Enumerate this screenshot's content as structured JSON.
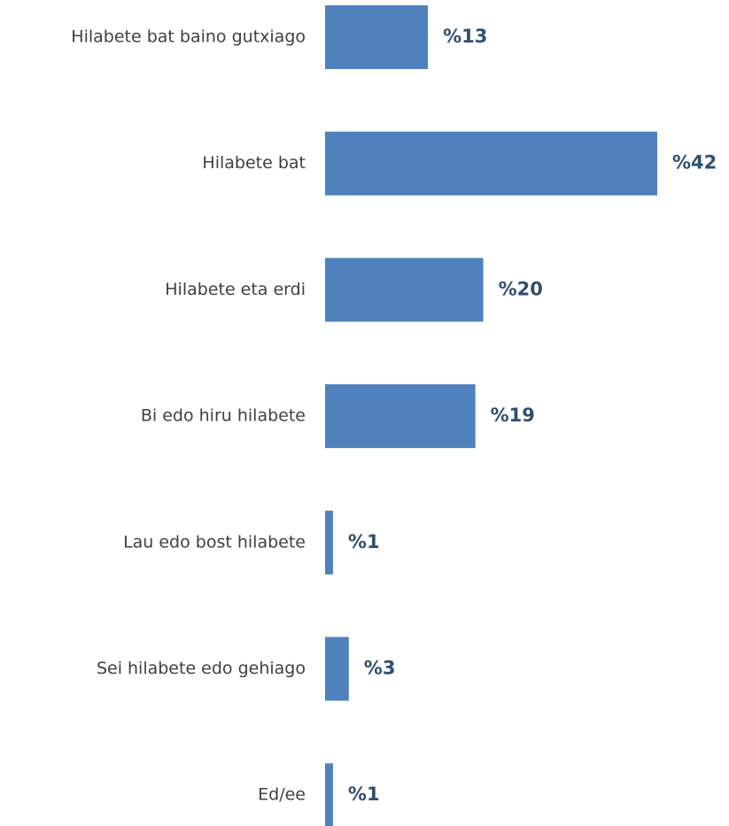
{
  "chart_data": {
    "type": "bar",
    "orientation": "horizontal",
    "categories": [
      "Hilabete bat baino gutxiago",
      "Hilabete bat",
      "Hilabete eta erdi",
      "Bi edo hiru hilabete",
      "Lau edo bost hilabete",
      "Sei hilabete edo gehiago",
      "Ed/ee"
    ],
    "values": [
      13,
      42,
      20,
      19,
      1,
      3,
      1
    ],
    "value_labels": [
      "%13",
      "%42",
      "%20",
      "%19",
      "%1",
      "%3",
      "%1"
    ],
    "color": "#4f81bd"
  }
}
